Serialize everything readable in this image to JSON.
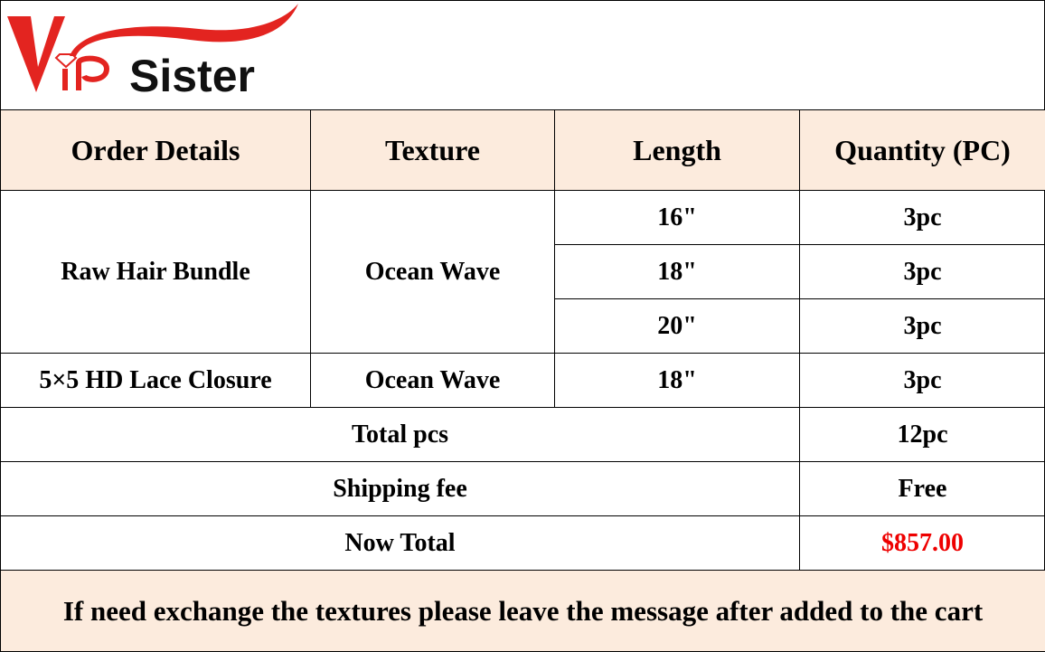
{
  "logo": {
    "text": "VIP Sister",
    "colors": {
      "red": "#e32420",
      "black": "#111111"
    }
  },
  "table": {
    "headers": [
      "Order Details",
      "Texture",
      "Length",
      "Quantity (PC)"
    ],
    "groups": [
      {
        "item": "Raw Hair Bundle",
        "texture": "Ocean Wave",
        "rows": [
          {
            "length": "16\"",
            "qty": "3pc"
          },
          {
            "length": "18\"",
            "qty": "3pc"
          },
          {
            "length": "20\"",
            "qty": "3pc"
          }
        ]
      },
      {
        "item": "5×5 HD Lace Closure",
        "texture": "Ocean Wave",
        "rows": [
          {
            "length": "18\"",
            "qty": "3pc"
          }
        ]
      }
    ],
    "summary": [
      {
        "label": "Total pcs",
        "value": "12pc"
      },
      {
        "label": "Shipping fee",
        "value": "Free"
      },
      {
        "label": "Now Total",
        "value": "$857.00"
      }
    ],
    "note": "If need exchange the textures please leave the message after added to the cart"
  },
  "colors": {
    "header_bg": "#fcebdd",
    "price": "#ee0000"
  }
}
